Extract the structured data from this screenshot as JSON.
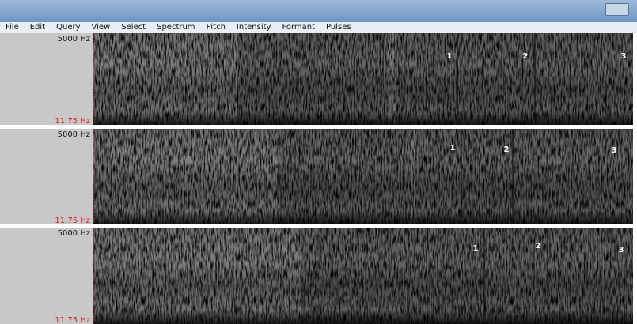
{
  "menu": [
    "File",
    "Edit",
    "Query",
    "View",
    "Select",
    "Spectrum",
    "Pitch",
    "Intensity",
    "Formant",
    "Pulses"
  ],
  "panels": [
    {
      "top_label": "5000 Hz",
      "bottom_label": "11.75 Hz",
      "markers": [
        "1",
        "2",
        "3"
      ]
    },
    {
      "top_label": "5000 Hz",
      "bottom_label": "11.75 Hz",
      "markers": [
        "1",
        "2",
        "3"
      ]
    },
    {
      "top_label": "5000 Hz",
      "bottom_label": "11.75 Hz",
      "markers": [
        "1",
        "2",
        "3"
      ]
    }
  ]
}
